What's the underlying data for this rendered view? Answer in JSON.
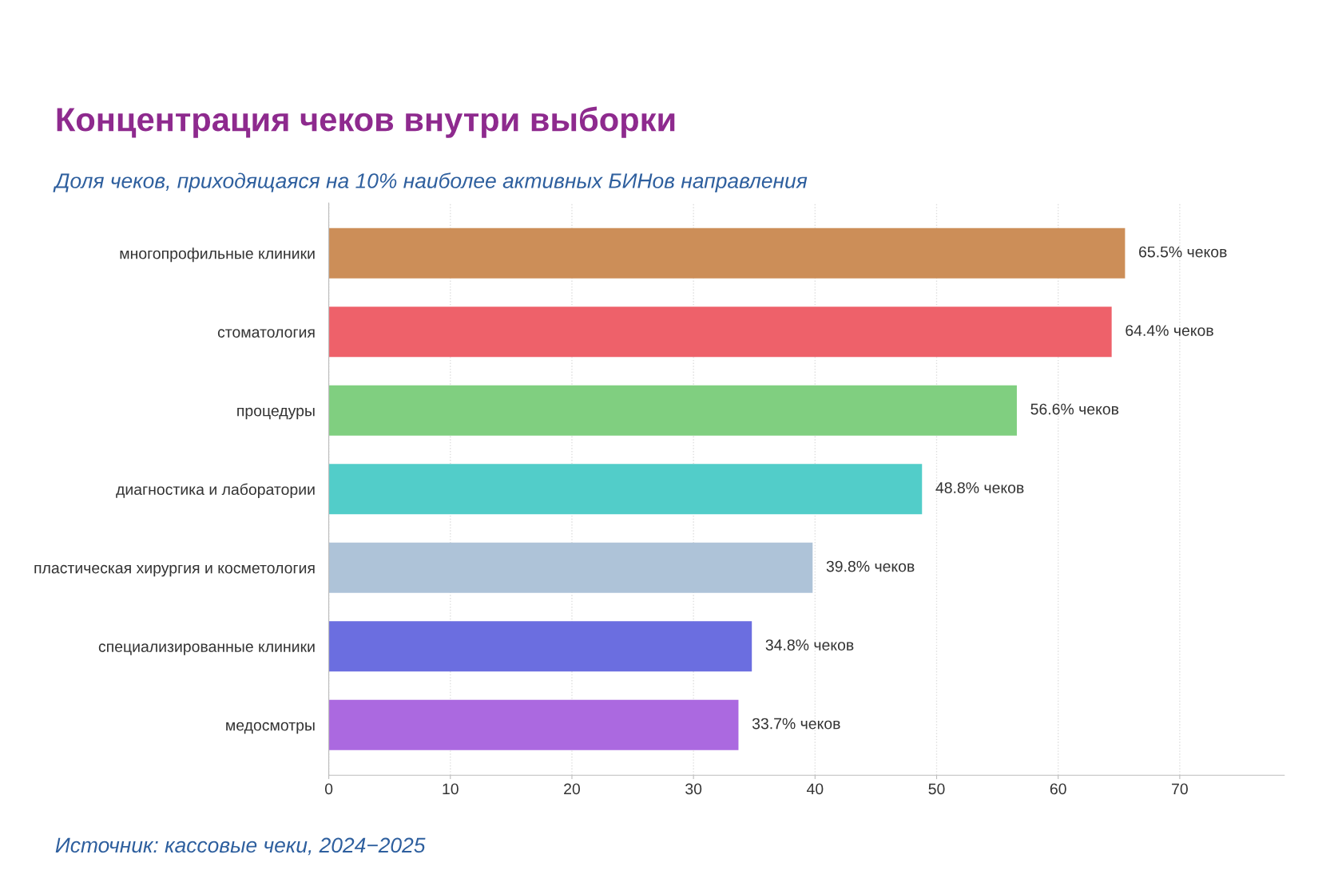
{
  "chart_data": {
    "type": "bar",
    "orientation": "horizontal",
    "title": "Концентрация чеков внутри выборки",
    "subtitle": "Доля чеков, приходящаяся на 10% наиболее активных БИНов направления",
    "categories": [
      "многопрофильные клиники",
      "стоматология",
      "процедуры",
      "диагностика и лаборатории",
      "пластическая хирургия и косметология",
      "специализированные клиники",
      "медосмотры"
    ],
    "values": [
      65.5,
      64.4,
      56.6,
      48.8,
      39.8,
      34.8,
      33.7
    ],
    "colors": [
      "#cc8e58",
      "#ee616a",
      "#80cf80",
      "#52cdc9",
      "#aec3d8",
      "#6b6ee0",
      "#ab69e0"
    ],
    "value_labels": [
      "65.5% чеков",
      "64.4% чеков",
      "56.6% чеков",
      "48.8% чеков",
      "39.8% чеков",
      "34.8% чеков",
      "33.7% чеков"
    ],
    "xlim": [
      0,
      78.6
    ],
    "xticks": [
      0,
      10,
      20,
      30,
      40,
      50,
      60,
      70
    ],
    "grid": "x",
    "annotations": [
      "Источник: кассовые чеки, 2024−2025"
    ]
  }
}
